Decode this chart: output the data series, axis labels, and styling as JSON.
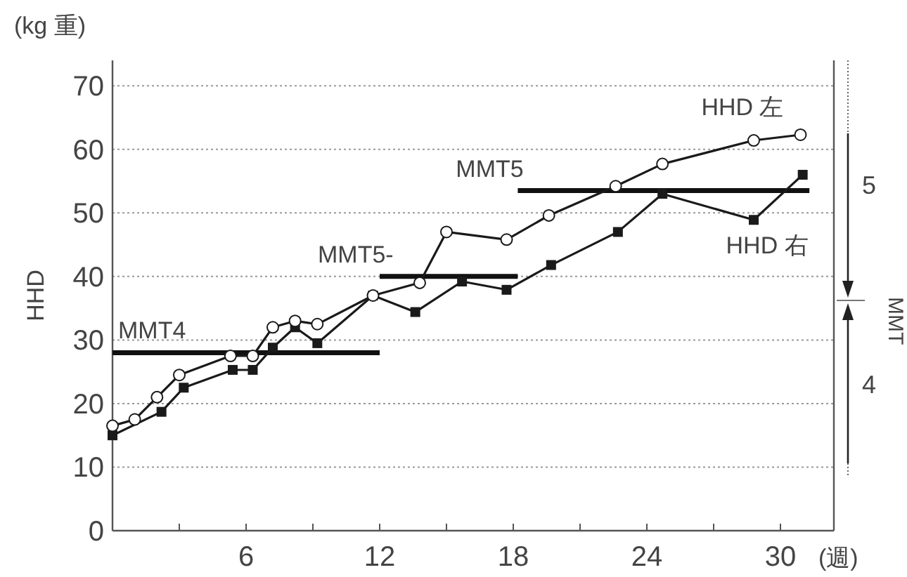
{
  "chart_data": {
    "type": "line",
    "xlabel": "(週)",
    "ylabel": "HHD",
    "y2label": "MMT",
    "annotations": [
      "(kg 重)",
      "5",
      "4"
    ],
    "xlim": [
      0,
      32.4
    ],
    "ylim": [
      0,
      74
    ],
    "xticks": [
      {
        "value": 3,
        "label": null
      },
      6,
      {
        "value": 9,
        "label": null
      },
      12,
      {
        "value": 15,
        "label": null
      },
      18,
      {
        "value": 21,
        "label": null
      },
      24,
      {
        "value": 27,
        "label": null
      },
      30
    ],
    "yticks": [
      0,
      10,
      20,
      30,
      40,
      50,
      60,
      70
    ],
    "grid": "y",
    "series": [
      {
        "name": "HHD 左",
        "color": "#1a1a1a",
        "marker": "circle",
        "x": [
          0,
          1,
          2,
          3,
          5.3,
          6.3,
          7.2,
          8.2,
          9.2,
          11.7,
          13.8,
          15,
          17.7,
          19.6,
          22.6,
          24.7,
          28.8,
          30.9
        ],
        "values": [
          16.5,
          17.5,
          21,
          24.5,
          27.5,
          27.5,
          32,
          33,
          32.5,
          37,
          39,
          47,
          45.8,
          49.6,
          54.2,
          57.7,
          61.4,
          62.3
        ]
      },
      {
        "name": "HHD 右",
        "color": "#1a1a1a",
        "marker": "square",
        "x": [
          0,
          2.2,
          3.2,
          5.4,
          6.3,
          7.2,
          8.2,
          9.2,
          11.7,
          13.6,
          15.7,
          17.7,
          19.7,
          22.7,
          24.7,
          28.8,
          31
        ],
        "values": [
          15,
          18.7,
          22.5,
          25.3,
          25.3,
          28.8,
          32,
          29.5,
          37,
          34.4,
          39.2,
          37.9,
          41.8,
          47,
          53,
          48.9,
          56
        ]
      },
      {
        "name": "MMT4",
        "color": "#111111",
        "marker": "none",
        "x": [
          0,
          12
        ],
        "values": [
          28,
          28
        ]
      },
      {
        "name": "MMT5-",
        "color": "#111111",
        "marker": "none",
        "x": [
          12,
          18.2
        ],
        "values": [
          40,
          40
        ]
      },
      {
        "name": "MMT5",
        "color": "#111111",
        "marker": "none",
        "x": [
          18.2,
          31.3
        ],
        "values": [
          53.5,
          53.5
        ]
      }
    ]
  }
}
